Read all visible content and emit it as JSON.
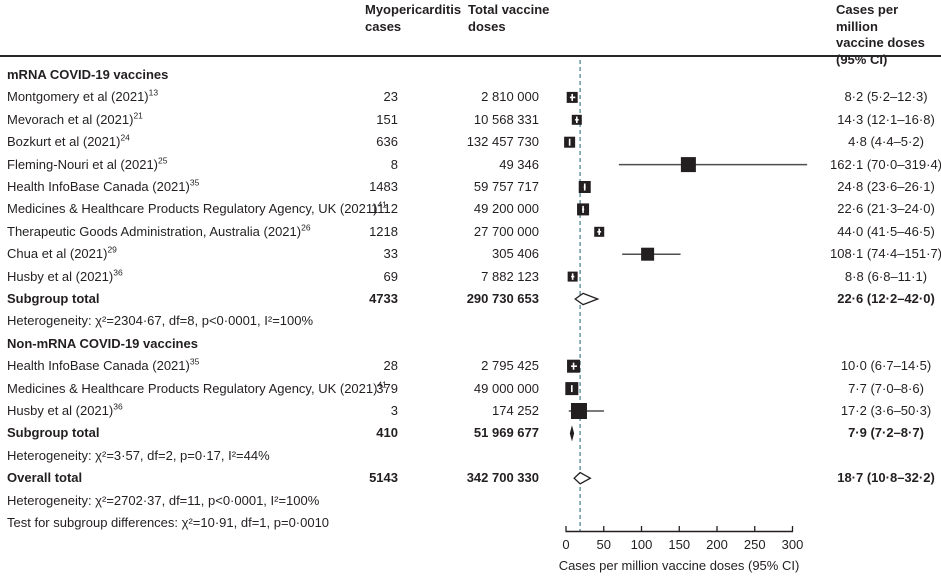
{
  "headers": {
    "cases": "Myopericarditis\ncases",
    "doses": "Total vaccine\ndoses",
    "ci": "Cases per million\nvaccine doses\n(95% CI)"
  },
  "colors": {
    "marker": "#231f20",
    "ci_line": "#4d4e50",
    "dashed_line": "#6a97a2",
    "text": "#231f20"
  },
  "chart_data": {
    "type": "scatter",
    "subtype": "forest-plot",
    "xlabel": "Cases per million vaccine doses (95% CI)",
    "axis": {
      "min": 0,
      "max": 300,
      "ticks": [
        0,
        50,
        100,
        150,
        200,
        250,
        300
      ],
      "dashed_line_at": 18.7
    },
    "rows": [
      {
        "kind": "group",
        "label": "mRNA COVID-19 vaccines"
      },
      {
        "kind": "study",
        "label": "Montgomery et al (2021)",
        "ref": "13",
        "cases": "23",
        "doses": "2 810 000",
        "est": 8.2,
        "lo": 5.2,
        "hi": 12.3,
        "ci": "8·2 (5·2–12·3)",
        "size": 11
      },
      {
        "kind": "study",
        "label": "Mevorach et al (2021)",
        "ref": "21",
        "cases": "151",
        "doses": "10 568 331",
        "est": 14.3,
        "lo": 12.1,
        "hi": 16.8,
        "ci": "14·3 (12·1–16·8)",
        "size": 10
      },
      {
        "kind": "study",
        "label": "Bozkurt et al (2021)",
        "ref": "24",
        "cases": "636",
        "doses": "132 457 730",
        "est": 4.8,
        "lo": 4.4,
        "hi": 5.2,
        "ci": "4·8 (4·4–5·2)",
        "size": 11
      },
      {
        "kind": "study",
        "label": "Fleming-Nouri et al (2021)",
        "ref": "25",
        "cases": "8",
        "doses": "49 346",
        "est": 162.1,
        "lo": 70.0,
        "hi": 319.4,
        "ci": "162·1 (70·0–319·4)",
        "size": 15
      },
      {
        "kind": "study",
        "label": "Health InfoBase Canada (2021)",
        "ref": "35",
        "cases": "1483",
        "doses": "59 757 717",
        "est": 24.8,
        "lo": 23.6,
        "hi": 26.1,
        "ci": "24·8 (23·6–26·1)",
        "size": 12
      },
      {
        "kind": "study",
        "label": "Medicines & Healthcare Products Regulatory Agency, UK (2021)",
        "ref": "41",
        "cases": "1112",
        "doses": "49 200 000",
        "est": 22.6,
        "lo": 21.3,
        "hi": 24.0,
        "ci": "22·6 (21·3–24·0)",
        "size": 12
      },
      {
        "kind": "study",
        "label": "Therapeutic Goods Administration, Australia (2021)",
        "ref": "26",
        "cases": "1218",
        "doses": "27 700 000",
        "est": 44.0,
        "lo": 41.5,
        "hi": 46.5,
        "ci": "44·0 (41·5–46·5)",
        "size": 10
      },
      {
        "kind": "study",
        "label": "Chua et al (2021)",
        "ref": "29",
        "cases": "33",
        "doses": "305 406",
        "est": 108.1,
        "lo": 74.4,
        "hi": 151.7,
        "ci": "108·1 (74·4–151·7)",
        "size": 13
      },
      {
        "kind": "study",
        "label": "Husby et al (2021)",
        "ref": "36",
        "cases": "69",
        "doses": "7 882 123",
        "est": 8.8,
        "lo": 6.8,
        "hi": 11.1,
        "ci": "8·8 (6·8–11·1)",
        "size": 10
      },
      {
        "kind": "total",
        "label": "Subgroup total",
        "cases": "4733",
        "doses": "290 730 653",
        "est": 22.6,
        "lo": 12.2,
        "hi": 42.0,
        "ci": "22·6 (12·2–42·0)",
        "diamond": "open"
      },
      {
        "kind": "text",
        "label": "Heterogeneity: χ²=2304·67, df=8, p<0·0001, I²=100%"
      },
      {
        "kind": "group",
        "label": "Non-mRNA COVID-19 vaccines"
      },
      {
        "kind": "study",
        "label": "Health InfoBase Canada (2021)",
        "ref": "35",
        "cases": "28",
        "doses": "2 795 425",
        "est": 10.0,
        "lo": 6.7,
        "hi": 14.5,
        "ci": "10·0 (6·7–14·5)",
        "size": 13
      },
      {
        "kind": "study",
        "label": "Medicines & Healthcare Products Regulatory Agency, UK (2021)",
        "ref": "41",
        "cases": "379",
        "doses": "49 000 000",
        "est": 7.7,
        "lo": 7.0,
        "hi": 8.6,
        "ci": "7·7 (7·0–8·6)",
        "size": 13
      },
      {
        "kind": "study",
        "label": "Husby et al (2021)",
        "ref": "36",
        "cases": "3",
        "doses": "174 252",
        "est": 17.2,
        "lo": 3.6,
        "hi": 50.3,
        "ci": "17·2 (3·6–50·3)",
        "size": 16
      },
      {
        "kind": "total",
        "label": "Subgroup total",
        "cases": "410",
        "doses": "51 969 677",
        "est": 7.9,
        "lo": 7.2,
        "hi": 8.7,
        "ci": "7·9 (7·2–8·7)",
        "diamond": "filled"
      },
      {
        "kind": "text",
        "label": "Heterogeneity: χ²=3·57, df=2, p=0·17, I²=44%"
      },
      {
        "kind": "total",
        "label": "Overall total",
        "cases": "5143",
        "doses": "342 700 330",
        "est": 18.7,
        "lo": 10.8,
        "hi": 32.2,
        "ci": "18·7 (10·8–32·2)",
        "diamond": "open"
      },
      {
        "kind": "text",
        "label": "Heterogeneity: χ²=2702·37, df=11, p<0·0001, I²=100%"
      },
      {
        "kind": "text",
        "label": "Test for subgroup differences: χ²=10·91, df=1, p=0·0010"
      }
    ]
  }
}
